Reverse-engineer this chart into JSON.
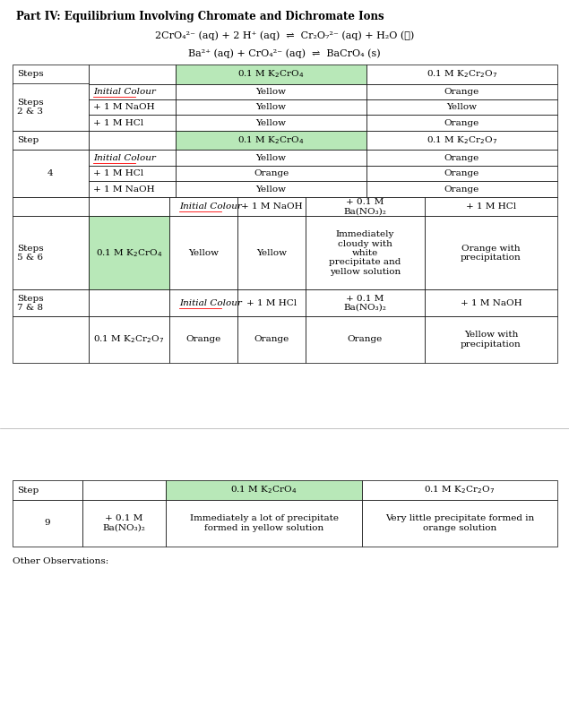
{
  "title": "Part IV: Equilibrium Involving Chromate and Dichromate Ions",
  "eq1": "2CrO₄²⁻ (aq) + 2 H⁺ (aq)  ⇌  Cr₂O₇²⁻ (aq) + H₂O (ℓ)",
  "eq2": "Ba²⁺ (aq) + CrO₄²⁻ (aq)  ⇌  BaCrO₄ (s)",
  "highlight_color": "#b8e8b8",
  "bg_color": "#ffffff",
  "title_fontsize": 8.5,
  "eq_fontsize": 8.0,
  "table_fontsize": 7.5,
  "page_width": 6.35,
  "page_height": 7.88
}
